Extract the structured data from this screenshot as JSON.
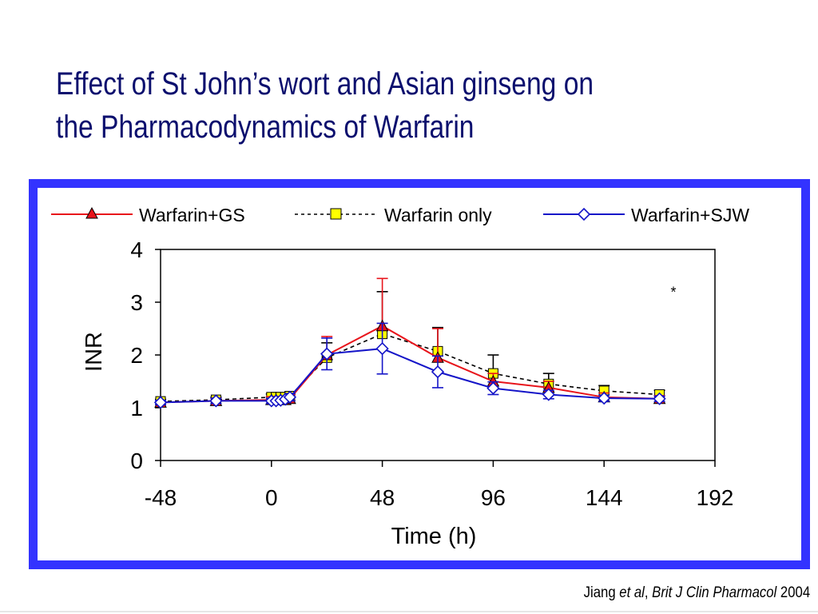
{
  "slide": {
    "title_line1": "Effect of St John’s wort and Asian ginseng on",
    "title_line2": "the Pharmacodynamics of Warfarin",
    "citation_author": "Jiang ",
    "citation_etal": "et al",
    "citation_sep": ", ",
    "citation_journal": "Brit J Clin Pharmacol",
    "citation_year": " 2004"
  },
  "colors": {
    "title": "#0b0f6e",
    "frame": "#3333ff",
    "gs": "#e8141b",
    "warfarin_only_marker": "#ffff00",
    "sjw": "#1414c8"
  },
  "chart_data": {
    "type": "line",
    "xlabel": "Time (h)",
    "ylabel": "INR",
    "xlim": [
      -48,
      192
    ],
    "ylim": [
      0,
      4
    ],
    "xticks": [
      -48,
      0,
      48,
      96,
      144,
      192
    ],
    "yticks": [
      0,
      1,
      2,
      3,
      4
    ],
    "legend_position": "top",
    "annotation": "*",
    "annotation_at": [
      174,
      3.1
    ],
    "series": [
      {
        "name": "Warfarin+GS",
        "line": "solid",
        "marker": "triangle",
        "color": "#e8141b",
        "x": [
          -48,
          -24,
          0,
          2,
          4,
          6,
          8,
          24,
          48,
          72,
          96,
          120,
          144,
          168
        ],
        "y": [
          1.1,
          1.13,
          1.15,
          1.15,
          1.15,
          1.15,
          1.17,
          2.0,
          2.55,
          1.95,
          1.5,
          1.38,
          1.2,
          1.17
        ],
        "err": [
          0.04,
          0.05,
          0.06,
          0.06,
          0.06,
          0.07,
          0.08,
          0.35,
          0.9,
          0.55,
          0.15,
          0.12,
          0.08,
          0.06
        ]
      },
      {
        "name": "Warfarin only",
        "line": "dashed",
        "marker": "square",
        "color": "#000000",
        "x": [
          -48,
          -24,
          0,
          2,
          4,
          6,
          8,
          24,
          48,
          72,
          96,
          120,
          144,
          168
        ],
        "y": [
          1.12,
          1.15,
          1.2,
          1.2,
          1.2,
          1.2,
          1.22,
          1.95,
          2.4,
          2.07,
          1.65,
          1.45,
          1.32,
          1.25
        ],
        "err": [
          0.04,
          0.05,
          0.06,
          0.06,
          0.06,
          0.07,
          0.08,
          0.28,
          0.8,
          0.45,
          0.35,
          0.2,
          0.1,
          0.08
        ]
      },
      {
        "name": "Warfarin+SJW",
        "line": "solid",
        "marker": "diamond",
        "color": "#1414c8",
        "x": [
          -48,
          -24,
          0,
          2,
          4,
          6,
          8,
          24,
          48,
          72,
          96,
          120,
          144,
          168
        ],
        "y": [
          1.1,
          1.13,
          1.13,
          1.13,
          1.14,
          1.16,
          1.2,
          2.02,
          2.12,
          1.68,
          1.37,
          1.25,
          1.18,
          1.17
        ],
        "err": [
          0.04,
          0.05,
          0.05,
          0.05,
          0.05,
          0.06,
          0.07,
          0.3,
          0.48,
          0.3,
          0.12,
          0.08,
          0.06,
          0.05
        ]
      }
    ]
  }
}
